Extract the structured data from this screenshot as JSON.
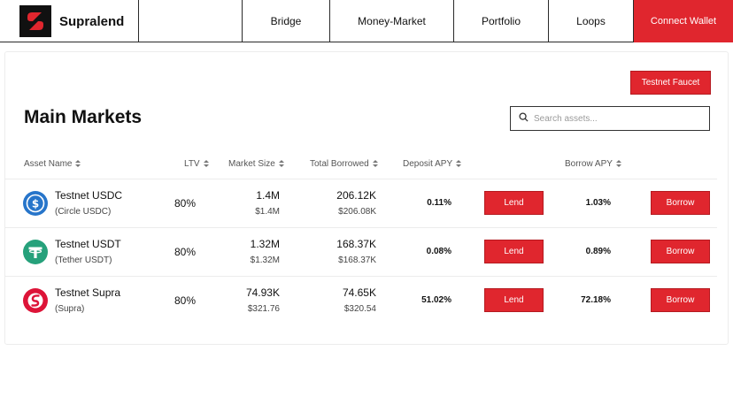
{
  "nav": {
    "brand": "Supralend",
    "items": [
      "Bridge",
      "Money-Market",
      "Portfolio",
      "Loops"
    ],
    "connect_label": "Connect Wallet"
  },
  "faucet_label": "Testnet Faucet",
  "page_title": "Main Markets",
  "search": {
    "placeholder": "Search assets..."
  },
  "columns": [
    "Asset Name",
    "LTV",
    "Market Size",
    "Total Borrowed",
    "Deposit APY",
    "Borrow APY"
  ],
  "rows": [
    {
      "icon": "usdc-icon",
      "name": "Testnet USDC",
      "subname": "(Circle USDC)",
      "ltv": "80%",
      "market_size": "1.4M",
      "market_size_usd": "$1.4M",
      "total_borrowed": "206.12K",
      "total_borrowed_usd": "$206.08K",
      "deposit_apy": "0.11%",
      "borrow_apy": "1.03%",
      "lend_label": "Lend",
      "borrow_label": "Borrow"
    },
    {
      "icon": "usdt-icon",
      "name": "Testnet USDT",
      "subname": "(Tether USDT)",
      "ltv": "80%",
      "market_size": "1.32M",
      "market_size_usd": "$1.32M",
      "total_borrowed": "168.37K",
      "total_borrowed_usd": "$168.37K",
      "deposit_apy": "0.08%",
      "borrow_apy": "0.89%",
      "lend_label": "Lend",
      "borrow_label": "Borrow"
    },
    {
      "icon": "supra-icon",
      "name": "Testnet Supra",
      "subname": "(Supra)",
      "ltv": "80%",
      "market_size": "74.93K",
      "market_size_usd": "$321.76",
      "total_borrowed": "74.65K",
      "total_borrowed_usd": "$320.54",
      "deposit_apy": "51.02%",
      "borrow_apy": "72.18%",
      "lend_label": "Lend",
      "borrow_label": "Borrow"
    }
  ],
  "colors": {
    "accent": "#e0262e",
    "usdc": "#2775ca",
    "usdt": "#26a17b",
    "supra": "#dd1438"
  }
}
